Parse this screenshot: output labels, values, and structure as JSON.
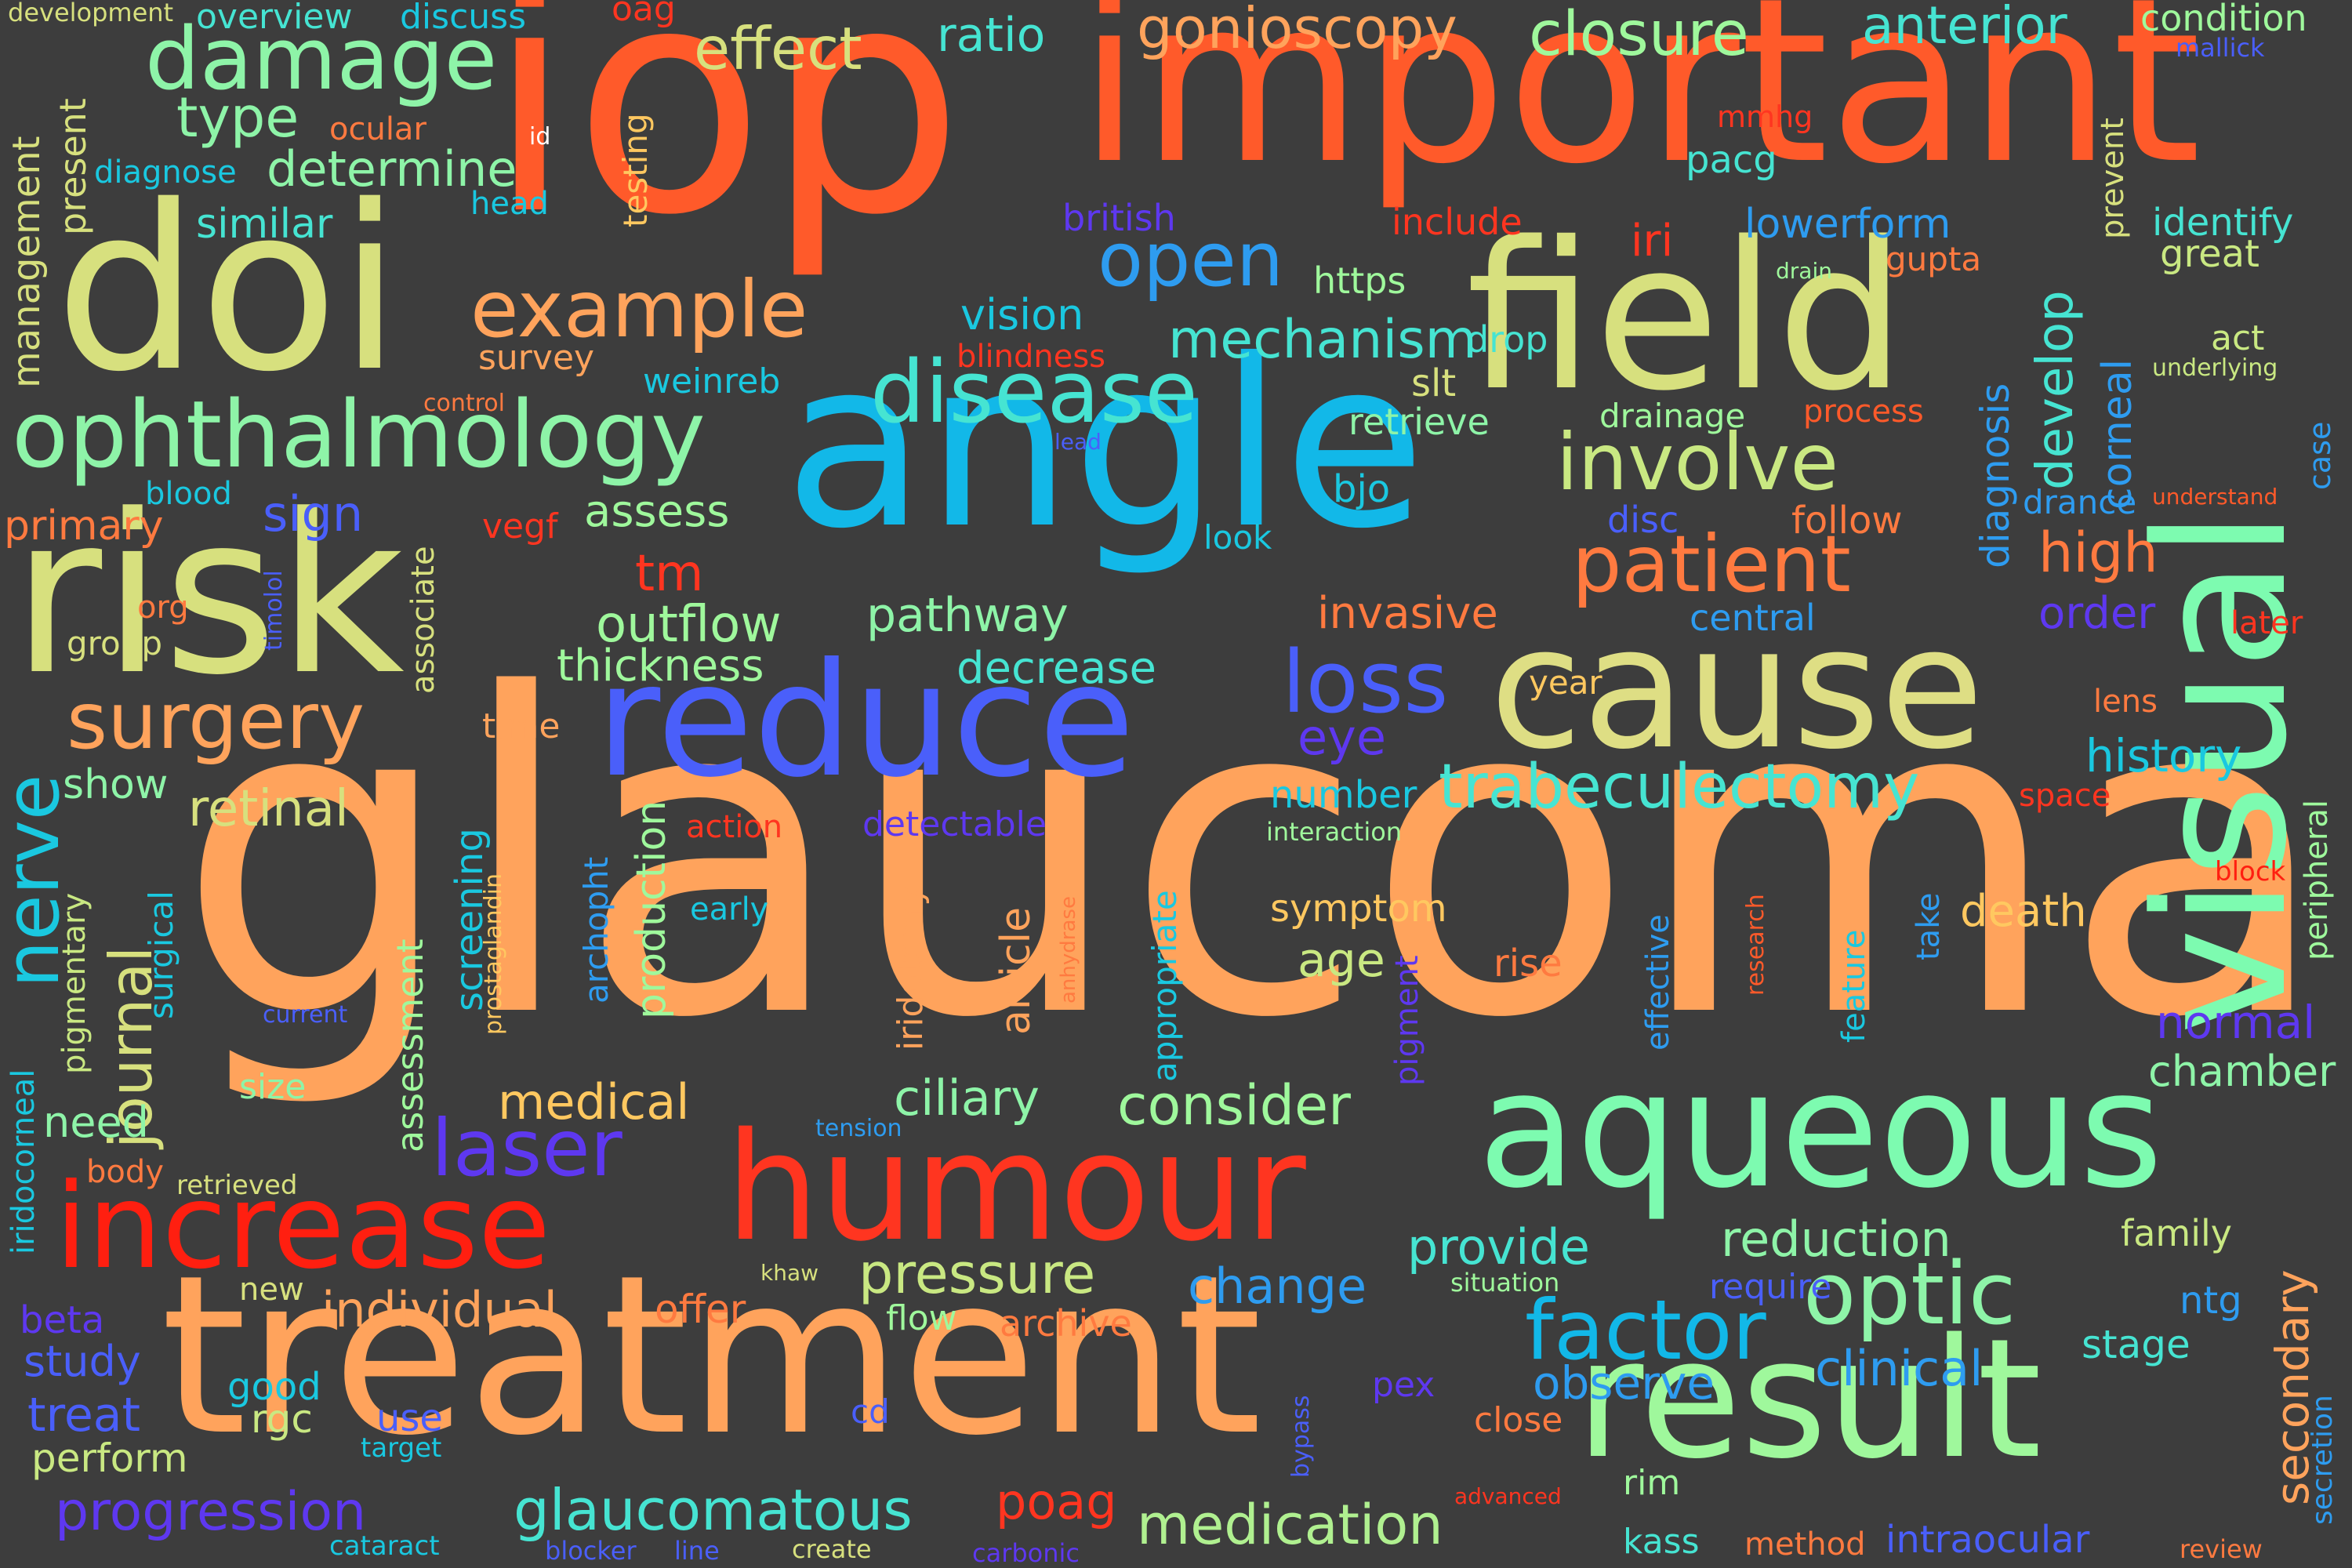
{
  "words": [
    {
      "text": "glaucoma",
      "color": "#ffa35c"
    },
    {
      "text": "iop",
      "color": "#ff5a2a"
    },
    {
      "text": "important",
      "color": "#ff5a2a"
    },
    {
      "text": "angle",
      "color": "#12b8e8"
    },
    {
      "text": "treatment",
      "color": "#ffa35c"
    },
    {
      "text": "doi",
      "color": "#d7e07e"
    },
    {
      "text": "risk",
      "color": "#d7e07e"
    },
    {
      "text": "field",
      "color": "#d7e07e"
    },
    {
      "text": "visual",
      "color": "#7dfbb0"
    },
    {
      "text": "cause",
      "color": "#dede84"
    },
    {
      "text": "reduce",
      "color": "#4a5ffa"
    },
    {
      "text": "aqueous",
      "color": "#7dfbb0"
    },
    {
      "text": "humour",
      "color": "#ff3520"
    },
    {
      "text": "result",
      "color": "#9ff89c"
    },
    {
      "text": "increase",
      "color": "#ff1f10"
    },
    {
      "text": "ophthalmology",
      "color": "#8ef4a8"
    },
    {
      "text": "damage",
      "color": "#8ef4a8"
    },
    {
      "text": "disease",
      "color": "#46e4d2"
    },
    {
      "text": "example",
      "color": "#ffa35c"
    },
    {
      "text": "involve",
      "color": "#c9e882"
    },
    {
      "text": "patient",
      "color": "#ff7a40"
    },
    {
      "text": "open",
      "color": "#2e9cf0"
    },
    {
      "text": "closure",
      "color": "#9ff89c"
    },
    {
      "text": "effect",
      "color": "#d7e07e"
    },
    {
      "text": "gonioscopy",
      "color": "#ffa35c"
    },
    {
      "text": "anterior",
      "color": "#46e4d2"
    },
    {
      "text": "ratio",
      "color": "#46e4d2"
    },
    {
      "text": "type",
      "color": "#8ef4a8"
    },
    {
      "text": "determine",
      "color": "#8ef4a8"
    },
    {
      "text": "surgery",
      "color": "#ffa35c"
    },
    {
      "text": "nerve",
      "color": "#1ac8e0"
    },
    {
      "text": "journal",
      "color": "#d7e07e"
    },
    {
      "text": "loss",
      "color": "#4a5ffa"
    },
    {
      "text": "trabeculectomy",
      "color": "#46e4d2"
    },
    {
      "text": "mechanism",
      "color": "#46e4d2"
    },
    {
      "text": "optic",
      "color": "#8ef4a8"
    },
    {
      "text": "factor",
      "color": "#12b8e8"
    },
    {
      "text": "laser",
      "color": "#5e38f0"
    },
    {
      "text": "pressure",
      "color": "#c9e882"
    },
    {
      "text": "medication",
      "color": "#b0f090"
    },
    {
      "text": "glaucomatous",
      "color": "#46e4d2"
    },
    {
      "text": "progression",
      "color": "#5e38f0"
    },
    {
      "text": "consider",
      "color": "#9ff89c"
    },
    {
      "text": "medical",
      "color": "#ffc860"
    },
    {
      "text": "ciliary",
      "color": "#8ef4a8"
    },
    {
      "text": "individual",
      "color": "#ffa35c"
    },
    {
      "text": "reduction",
      "color": "#8ef4a8"
    },
    {
      "text": "provide",
      "color": "#46e4d2"
    },
    {
      "text": "change",
      "color": "#2e9cf0"
    },
    {
      "text": "clinical",
      "color": "#2e9cf0"
    },
    {
      "text": "observe",
      "color": "#2e9cf0"
    },
    {
      "text": "secondary",
      "color": "#ffa35c"
    },
    {
      "text": "outflow",
      "color": "#9ff89c"
    },
    {
      "text": "pathway",
      "color": "#8ef4a8"
    },
    {
      "text": "decrease",
      "color": "#46e4d2"
    },
    {
      "text": "thickness",
      "color": "#9ff89c"
    },
    {
      "text": "retinal",
      "color": "#d7e07e"
    },
    {
      "text": "invasive",
      "color": "#ff7a40"
    },
    {
      "text": "high",
      "color": "#ff7a40"
    },
    {
      "text": "order",
      "color": "#5e38f0"
    },
    {
      "text": "develop",
      "color": "#46e4d2"
    },
    {
      "text": "corneal",
      "color": "#2e9cf0"
    },
    {
      "text": "diagnosis",
      "color": "#2e9cf0"
    },
    {
      "text": "history",
      "color": "#1ac8e0"
    },
    {
      "text": "normal",
      "color": "#5e38f0"
    },
    {
      "text": "chamber",
      "color": "#8ef4a8"
    },
    {
      "text": "death",
      "color": "#ffc860"
    },
    {
      "text": "sign",
      "color": "#4a5ffa"
    },
    {
      "text": "assess",
      "color": "#9ff89c"
    },
    {
      "text": "primary",
      "color": "#ff7a40"
    },
    {
      "text": "tm",
      "color": "#ff3520"
    },
    {
      "text": "eye",
      "color": "#5e38f0"
    },
    {
      "text": "vision",
      "color": "#1ac8e0"
    },
    {
      "text": "similar",
      "color": "#46e4d2"
    },
    {
      "text": "management",
      "color": "#d7e07e"
    },
    {
      "text": "present",
      "color": "#d7e07e"
    },
    {
      "text": "overview",
      "color": "#46e4d2"
    },
    {
      "text": "discuss",
      "color": "#1ac8e0"
    },
    {
      "text": "development",
      "color": "#d7e07e"
    },
    {
      "text": "oag",
      "color": "#ff3520"
    },
    {
      "text": "ocular",
      "color": "#ff7a40"
    },
    {
      "text": "diagnose",
      "color": "#1ac8e0"
    },
    {
      "text": "head",
      "color": "#1ac8e0"
    },
    {
      "text": "id",
      "color": "#ffffff"
    },
    {
      "text": "testing",
      "color": "#ffc860"
    },
    {
      "text": "british",
      "color": "#5e38f0"
    },
    {
      "text": "include",
      "color": "#ff3520"
    },
    {
      "text": "iri",
      "color": "#ff3520"
    },
    {
      "text": "lowerform",
      "color": "#2e9cf0"
    },
    {
      "text": "pacg",
      "color": "#46e4d2"
    },
    {
      "text": "mmhg",
      "color": "#ff3520"
    },
    {
      "text": "https",
      "color": "#9ff89c"
    },
    {
      "text": "gupta",
      "color": "#ff7a40"
    },
    {
      "text": "drain",
      "color": "#9ff89c"
    },
    {
      "text": "condition",
      "color": "#9ff89c"
    },
    {
      "text": "mallick",
      "color": "#4a5ffa"
    },
    {
      "text": "identify",
      "color": "#46e4d2"
    },
    {
      "text": "great",
      "color": "#c9e882"
    },
    {
      "text": "prevent",
      "color": "#d7e07e"
    },
    {
      "text": "act",
      "color": "#c9e882"
    },
    {
      "text": "underlying",
      "color": "#c9e882"
    },
    {
      "text": "case",
      "color": "#2e9cf0"
    },
    {
      "text": "understand",
      "color": "#ff5a2a"
    },
    {
      "text": "drance",
      "color": "#2e9cf0"
    },
    {
      "text": "follow",
      "color": "#ff7a40"
    },
    {
      "text": "later",
      "color": "#ff3520"
    },
    {
      "text": "lens",
      "color": "#ff7a40"
    },
    {
      "text": "space",
      "color": "#ff3520"
    },
    {
      "text": "block",
      "color": "#ff1f10"
    },
    {
      "text": "peripheral",
      "color": "#9ff89c"
    },
    {
      "text": "family",
      "color": "#c9e882"
    },
    {
      "text": "ntg",
      "color": "#2e9cf0"
    },
    {
      "text": "stage",
      "color": "#46e4d2"
    },
    {
      "text": "secretion",
      "color": "#2e9cf0"
    },
    {
      "text": "review",
      "color": "#ff7a40"
    },
    {
      "text": "intraocular",
      "color": "#4a5ffa"
    },
    {
      "text": "method",
      "color": "#ff7a40"
    },
    {
      "text": "kass",
      "color": "#46e4d2"
    },
    {
      "text": "rim",
      "color": "#9ff89c"
    },
    {
      "text": "close",
      "color": "#ff7a40"
    },
    {
      "text": "pex",
      "color": "#5e38f0"
    },
    {
      "text": "bypass",
      "color": "#4a5ffa"
    },
    {
      "text": "advanced",
      "color": "#ff3520"
    },
    {
      "text": "require",
      "color": "#4a5ffa"
    },
    {
      "text": "situation",
      "color": "#9ff89c"
    },
    {
      "text": "archive",
      "color": "#ff7a40"
    },
    {
      "text": "flow",
      "color": "#9ff89c"
    },
    {
      "text": "offer",
      "color": "#ff7a40"
    },
    {
      "text": "poag",
      "color": "#ff3520"
    },
    {
      "text": "khaw",
      "color": "#d7e07e"
    },
    {
      "text": "cd",
      "color": "#4a5ffa"
    },
    {
      "text": "carbonic",
      "color": "#5e38f0"
    },
    {
      "text": "create",
      "color": "#d7e07e"
    },
    {
      "text": "line",
      "color": "#4a5ffa"
    },
    {
      "text": "blocker",
      "color": "#4a5ffa"
    },
    {
      "text": "cataract",
      "color": "#1ac8e0"
    },
    {
      "text": "target",
      "color": "#1ac8e0"
    },
    {
      "text": "use",
      "color": "#4a5ffa"
    },
    {
      "text": "rgc",
      "color": "#c9e882"
    },
    {
      "text": "perform",
      "color": "#c9e882"
    },
    {
      "text": "treat",
      "color": "#4a5ffa"
    },
    {
      "text": "good",
      "color": "#1ac8e0"
    },
    {
      "text": "study",
      "color": "#4a5ffa"
    },
    {
      "text": "beta",
      "color": "#5e38f0"
    },
    {
      "text": "new",
      "color": "#d7e07e"
    },
    {
      "text": "retrieved",
      "color": "#d7e07e"
    },
    {
      "text": "body",
      "color": "#ff7a40"
    },
    {
      "text": "need",
      "color": "#8ef4a8"
    },
    {
      "text": "size",
      "color": "#8ef4a8"
    },
    {
      "text": "current",
      "color": "#4a5ffa"
    },
    {
      "text": "iridocorneal",
      "color": "#1ac8e0"
    },
    {
      "text": "pigmentary",
      "color": "#c9e882"
    },
    {
      "text": "surgical",
      "color": "#1ac8e0"
    },
    {
      "text": "show",
      "color": "#8ef4a8"
    },
    {
      "text": "group",
      "color": "#d7e07e"
    },
    {
      "text": "org",
      "color": "#ff7a40"
    },
    {
      "text": "blood",
      "color": "#1ac8e0"
    },
    {
      "text": "control",
      "color": "#ff7a40"
    },
    {
      "text": "survey",
      "color": "#ffa35c"
    },
    {
      "text": "vegf",
      "color": "#ff3520"
    },
    {
      "text": "timolol",
      "color": "#4a5ffa"
    },
    {
      "text": "associate",
      "color": "#d7e07e"
    },
    {
      "text": "time",
      "color": "#ffa35c"
    },
    {
      "text": "weinreb",
      "color": "#1ac8e0"
    },
    {
      "text": "blindness",
      "color": "#ff3520"
    },
    {
      "text": "drop",
      "color": "#46e4d2"
    },
    {
      "text": "slt",
      "color": "#d7e07e"
    },
    {
      "text": "retrieve",
      "color": "#8ef4a8"
    },
    {
      "text": "drainage",
      "color": "#9ff89c"
    },
    {
      "text": "process",
      "color": "#ff5a2a"
    },
    {
      "text": "lead",
      "color": "#4a5ffa"
    },
    {
      "text": "bjo",
      "color": "#1ac8e0"
    },
    {
      "text": "look",
      "color": "#1ac8e0"
    },
    {
      "text": "disc",
      "color": "#4a5ffa"
    },
    {
      "text": "central",
      "color": "#2e9cf0"
    },
    {
      "text": "year",
      "color": "#ffc860"
    },
    {
      "text": "number",
      "color": "#1ac8e0"
    },
    {
      "text": "interaction",
      "color": "#9ff89c"
    },
    {
      "text": "detectable",
      "color": "#5e38f0"
    },
    {
      "text": "action",
      "color": "#ff3520"
    },
    {
      "text": "early",
      "color": "#1ac8e0"
    },
    {
      "text": "production",
      "color": "#9ff89c"
    },
    {
      "text": "screening",
      "color": "#1ac8e0"
    },
    {
      "text": "prostaglandin",
      "color": "#ffc860"
    },
    {
      "text": "archopht",
      "color": "#2e9cf0"
    },
    {
      "text": "assessment",
      "color": "#9ff89c"
    },
    {
      "text": "iridotomy",
      "color": "#ffa35c"
    },
    {
      "text": "article",
      "color": "#ffa35c"
    },
    {
      "text": "anhydrase",
      "color": "#ff7a40"
    },
    {
      "text": "appropriate",
      "color": "#1ac8e0"
    },
    {
      "text": "symptom",
      "color": "#ffc860"
    },
    {
      "text": "age",
      "color": "#c9e882"
    },
    {
      "text": "pigment",
      "color": "#5e38f0"
    },
    {
      "text": "rise",
      "color": "#ff7a40"
    },
    {
      "text": "effective",
      "color": "#2e9cf0"
    },
    {
      "text": "research",
      "color": "#ff5a2a"
    },
    {
      "text": "feature",
      "color": "#1ac8e0"
    },
    {
      "text": "take",
      "color": "#2e9cf0"
    },
    {
      "text": "tension",
      "color": "#2e9cf0"
    }
  ]
}
